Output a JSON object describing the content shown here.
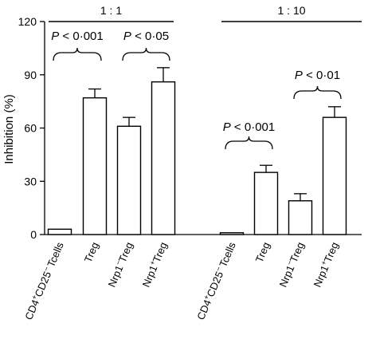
{
  "chart_data": {
    "type": "bar",
    "ylabel": "Inhibition (%)",
    "ylim": [
      0,
      120
    ],
    "yticks": [
      "0",
      "30",
      "60",
      "90",
      "120"
    ],
    "grid": false,
    "groups": [
      {
        "label": "1 : 1",
        "categories": [
          {
            "pre": "CD4",
            "sup1": "+",
            "mid": "CD25",
            "sup2": "−",
            "post": "Tcells"
          },
          {
            "pre": "Treg",
            "sup1": "",
            "mid": "",
            "sup2": "",
            "post": ""
          },
          {
            "pre": "Nrp1",
            "sup1": "−",
            "mid": "Treg",
            "sup2": "",
            "post": ""
          },
          {
            "pre": "Nrp1",
            "sup1": "+",
            "mid": "Treg",
            "sup2": "",
            "post": ""
          }
        ],
        "values": [
          3,
          77,
          61,
          86
        ],
        "errors": [
          0.5,
          5,
          5,
          8
        ]
      },
      {
        "label": "1 : 10",
        "categories": [
          {
            "pre": "CD4",
            "sup1": "+",
            "mid": "CD25",
            "sup2": "−",
            "post": "Tcells"
          },
          {
            "pre": "Treg",
            "sup1": "",
            "mid": "",
            "sup2": "",
            "post": ""
          },
          {
            "pre": "Nrp1",
            "sup1": "−",
            "mid": "Treg",
            "sup2": "",
            "post": ""
          },
          {
            "pre": "Nrp1",
            "sup1": "+",
            "mid": "Treg",
            "sup2": "",
            "post": ""
          }
        ],
        "values": [
          1,
          35,
          19,
          66
        ],
        "errors": [
          0.5,
          4,
          4,
          6
        ]
      }
    ],
    "annotations": [
      {
        "group": 0,
        "from": 0,
        "to": 1,
        "p": "P",
        "rest": " < 0·001"
      },
      {
        "group": 0,
        "from": 2,
        "to": 3,
        "p": "P",
        "rest": " < 0·05"
      },
      {
        "group": 1,
        "from": 0,
        "to": 1,
        "p": "P",
        "rest": " < 0·001"
      },
      {
        "group": 1,
        "from": 2,
        "to": 3,
        "p": "P",
        "rest": " < 0·01"
      }
    ]
  }
}
